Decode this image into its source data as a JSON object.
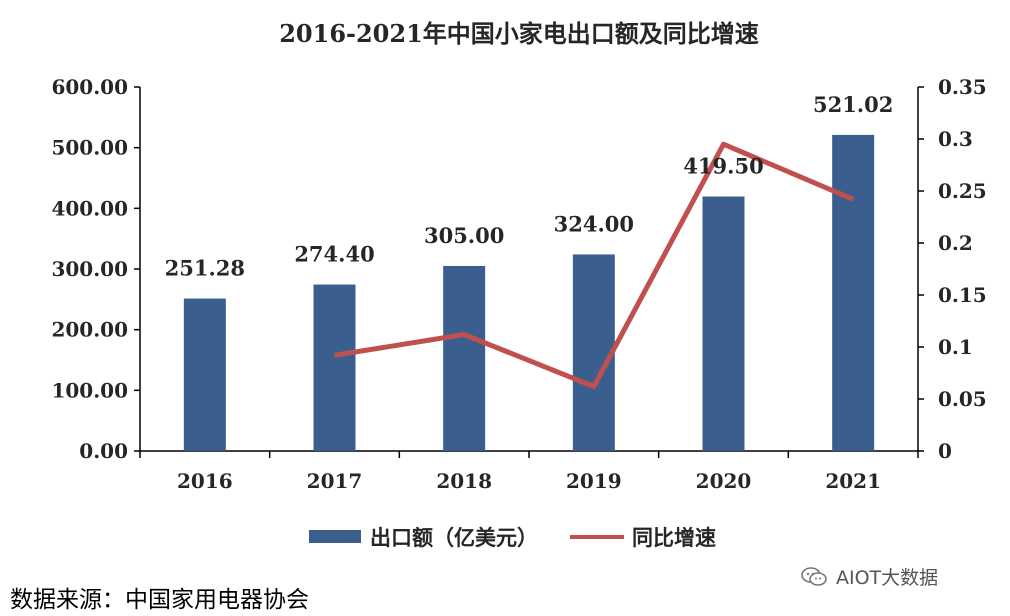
{
  "chart_data": {
    "type": "bar",
    "title": "2016-2021年中国小家电出口额及同比增速",
    "categories": [
      "2016",
      "2017",
      "2018",
      "2019",
      "2020",
      "2021"
    ],
    "series": [
      {
        "name": "出口额（亿美元）",
        "type": "bar",
        "axis": "left",
        "color": "#3A5F8F",
        "values": [
          251.28,
          274.4,
          305.0,
          324.0,
          419.5,
          521.02
        ],
        "data_labels": [
          "251.28",
          "274.40",
          "305.00",
          "324.00",
          "419.50",
          "521.02"
        ]
      },
      {
        "name": "同比增速",
        "type": "line",
        "axis": "right",
        "color": "#C0504D",
        "values": [
          null,
          0.092,
          0.112,
          0.062,
          0.295,
          0.242
        ]
      }
    ],
    "y_left": {
      "range": [
        0,
        600
      ],
      "ticks": [
        "0.00",
        "100.00",
        "200.00",
        "300.00",
        "400.00",
        "500.00",
        "600.00"
      ]
    },
    "y_right": {
      "range": [
        0,
        0.35
      ],
      "ticks": [
        "0",
        "0.05",
        "0.1",
        "0.15",
        "0.2",
        "0.25",
        "0.3",
        "0.35"
      ]
    },
    "grid": false,
    "legend": "bottom"
  },
  "source_text": "数据来源：中国家用电器协会",
  "watermark_text": "AIOT大数据"
}
